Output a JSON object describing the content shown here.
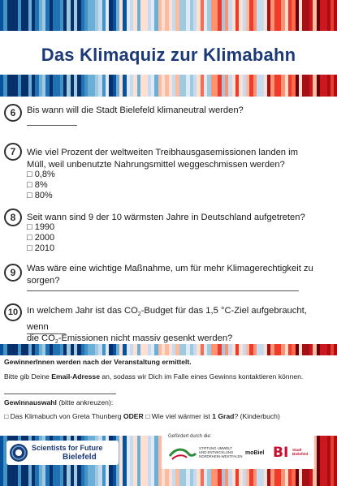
{
  "title": "Das Klimaquiz zur Klimabahn",
  "questions": [
    {
      "number": "6",
      "text": "Bis wann will die Stadt Bielefeld klimaneutral werden?",
      "options": []
    },
    {
      "number": "7",
      "text": "Wie viel Prozent der weltweiten Treibhausgasemissionen landen im Müll, weil unbenutzte Nahrungsmittel weggeschmissen werden?",
      "options": [
        "□ 0,8%",
        "□ 8%",
        "□ 80%"
      ]
    },
    {
      "number": "8",
      "text": "Seit wann sind 9 der 10 wärmsten Jahre in Deutschland aufgetreten?",
      "options": [
        "□ 1990",
        "□ 2000",
        "□ 2010"
      ]
    },
    {
      "number": "9",
      "text": "Was wäre eine wichtige Maßnahme, um für mehr Klimagerechtigkeit zu sorgen?",
      "options": []
    },
    {
      "number": "10",
      "text_line1_a": "In welchem Jahr ist das CO",
      "text_sub": "2",
      "text_line1_b": "-Budget für das 1,5 °C-Ziel aufgebraucht, wenn",
      "text_line2_a": "die CO",
      "text_line2_b": "-Emissionen nicht massiv gesenkt werden?",
      "options": []
    }
  ],
  "footer": {
    "winners_note": "GewinnerInnen werden nach der Veranstaltung ermittelt.",
    "email_text_a": "Bitte gib Deine ",
    "email_text_bold": "Email-Adresse",
    "email_text_b": " an, sodass wir Dich im Falle eines Gewinns kontaktieren können.",
    "prize_heading_bold": "Gewinnauswahl",
    "prize_heading_rest": " (bitte ankreuzen):",
    "prize_option_a": "□ Das Klimabuch von Greta Thunberg  ",
    "prize_or": "ODER",
    "prize_option_b_1": " □ Wie viel wärmer ist ",
    "prize_option_b_bold": "1 Grad",
    "prize_option_b_2": "? (Kinderbuch)"
  },
  "logos": {
    "sff_line1": "Scientists for Future",
    "sff_line2": "Bielefeld",
    "sponsor_label": "Gefördert durch die:",
    "stiftung": [
      "STIFTUNG UMWELT",
      "UND ENTWICKLUNG",
      "NORDRHEIN-WESTFALEN"
    ],
    "mobiel": "moBiel",
    "bi_mark": "BI",
    "bi_text": [
      "Stadt",
      "Bielefeld"
    ]
  },
  "colors": {
    "title_blue": "#1d3a78",
    "stripe_palette": [
      "#08306b",
      "#08519c",
      "#2171b5",
      "#4292c6",
      "#6baed6",
      "#9ecae1",
      "#c6dbef",
      "#deebf7",
      "#fee0d2",
      "#fcbba1",
      "#fc9272",
      "#fb6a4a",
      "#ef3b2c",
      "#cb181d",
      "#a50f15",
      "#67000d"
    ]
  }
}
